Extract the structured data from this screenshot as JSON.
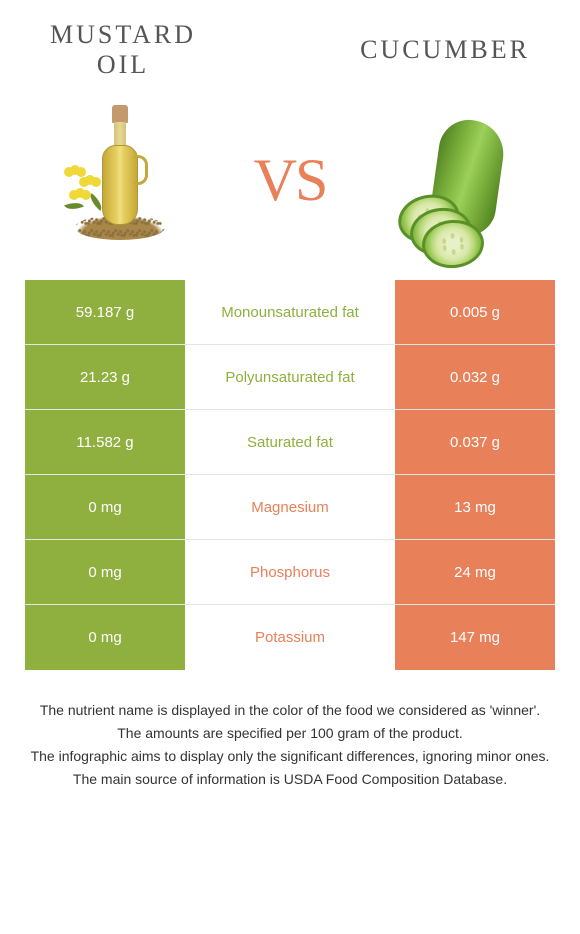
{
  "header": {
    "left_title": "MUSTARD\nOIL",
    "right_title": "CUCUMBER",
    "vs": "VS"
  },
  "colors": {
    "left_column": "#8fb03e",
    "right_column": "#e8805a",
    "vs_color": "#e8805a",
    "title_color": "#555555",
    "background": "#ffffff"
  },
  "comparison": {
    "type": "table",
    "rows": [
      {
        "left": "59.187 g",
        "label": "Monounsaturated fat",
        "right": "0.005 g",
        "winner": "left"
      },
      {
        "left": "21.23 g",
        "label": "Polyunsaturated fat",
        "right": "0.032 g",
        "winner": "left"
      },
      {
        "left": "11.582 g",
        "label": "Saturated fat",
        "right": "0.037 g",
        "winner": "left"
      },
      {
        "left": "0 mg",
        "label": "Magnesium",
        "right": "13 mg",
        "winner": "right"
      },
      {
        "left": "0 mg",
        "label": "Phosphorus",
        "right": "24 mg",
        "winner": "right"
      },
      {
        "left": "0 mg",
        "label": "Potassium",
        "right": "147 mg",
        "winner": "right"
      }
    ]
  },
  "footer": {
    "line1": "The nutrient name is displayed in the color of the food we considered as 'winner'.",
    "line2": "The amounts are specified per 100 gram of the product.",
    "line3": "The infographic aims to display only the significant differences, ignoring minor ones.",
    "line4": "The main source of information is USDA Food Composition Database."
  }
}
